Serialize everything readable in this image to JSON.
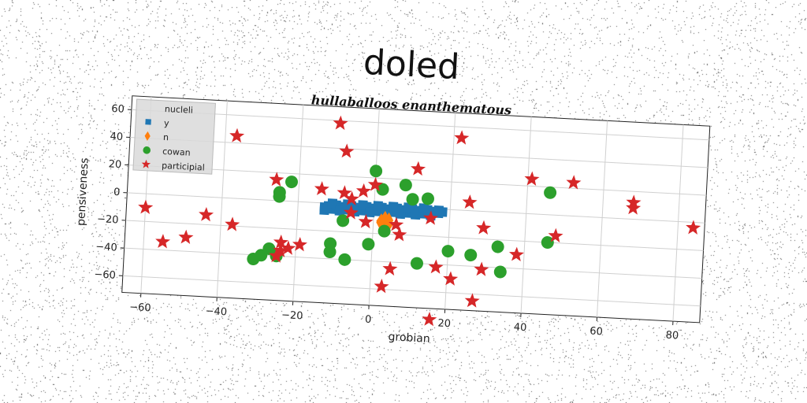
{
  "chart_data": {
    "type": "scatter",
    "title": "doled",
    "subtitle": "hullaballoos enanthematous",
    "xlabel": "grobian",
    "ylabel": "pensiveness",
    "xlim": [
      -65,
      87
    ],
    "ylim": [
      -72,
      70
    ],
    "x_ticks": [
      -60,
      -40,
      -20,
      0,
      20,
      40,
      60,
      80
    ],
    "y_ticks": [
      -60,
      -40,
      -20,
      0,
      20,
      40,
      60
    ],
    "grid": true,
    "legend_title": "nucleli",
    "legend_position": "top-left",
    "series": [
      {
        "name": "y",
        "marker": "square",
        "color": "#1f77b4",
        "points": [
          [
            -13,
            -3
          ],
          [
            -12,
            -2
          ],
          [
            -11,
            -4
          ],
          [
            -10,
            -1
          ],
          [
            -9,
            -3
          ],
          [
            -8,
            -2
          ],
          [
            -7,
            -4
          ],
          [
            -6,
            -1
          ],
          [
            -5,
            -3
          ],
          [
            -4,
            -2
          ],
          [
            -3,
            -4
          ],
          [
            -2,
            -1
          ],
          [
            -1,
            -3
          ],
          [
            0,
            -2
          ],
          [
            1,
            -4
          ],
          [
            2,
            -1
          ],
          [
            3,
            -3
          ],
          [
            4,
            -2
          ],
          [
            5,
            -4
          ],
          [
            6,
            -1
          ],
          [
            7,
            -3
          ],
          [
            8,
            -2
          ],
          [
            9,
            -4
          ],
          [
            10,
            -1
          ],
          [
            11,
            -3
          ],
          [
            12,
            -2
          ],
          [
            13,
            -4
          ],
          [
            14,
            -1
          ],
          [
            15,
            -3
          ],
          [
            16,
            -2
          ],
          [
            17,
            -3
          ],
          [
            18,
            -2
          ],
          [
            -13,
            -5
          ],
          [
            -11,
            0
          ],
          [
            -9,
            -5
          ],
          [
            -7,
            0
          ],
          [
            -5,
            -5
          ],
          [
            -3,
            0
          ],
          [
            -1,
            -5
          ],
          [
            1,
            0
          ],
          [
            3,
            -5
          ],
          [
            5,
            0
          ],
          [
            7,
            -5
          ],
          [
            9,
            0
          ],
          [
            11,
            -5
          ],
          [
            13,
            0
          ],
          [
            15,
            -5
          ],
          [
            17,
            -1
          ]
        ]
      },
      {
        "name": "n",
        "marker": "diamond",
        "color": "#ff7f0e",
        "points": [
          [
            2,
            -12
          ],
          [
            3,
            -14
          ],
          [
            4,
            -10
          ],
          [
            3,
            -16
          ],
          [
            2,
            -11
          ],
          [
            4,
            -13
          ],
          [
            3,
            -9
          ]
        ]
      },
      {
        "name": "cowan",
        "marker": "circle",
        "color": "#2ca02c",
        "points": [
          [
            -25,
            6
          ],
          [
            -25,
            3
          ],
          [
            -22,
            14
          ],
          [
            -31,
            -43
          ],
          [
            -29,
            -40
          ],
          [
            -25,
            -40
          ],
          [
            -27,
            -35
          ],
          [
            -11,
            -29
          ],
          [
            -11,
            -35
          ],
          [
            -7,
            -40
          ],
          [
            -8,
            -12
          ],
          [
            -1,
            -28
          ],
          [
            0,
            25
          ],
          [
            2,
            12
          ],
          [
            8,
            16
          ],
          [
            10,
            6
          ],
          [
            14,
            7
          ],
          [
            20,
            -30
          ],
          [
            26,
            -32
          ],
          [
            33,
            -25
          ],
          [
            34,
            -43
          ],
          [
            46,
            16
          ],
          [
            46,
            -20
          ],
          [
            12,
            -40
          ],
          [
            3,
            -18
          ]
        ]
      },
      {
        "name": "participial",
        "marker": "star",
        "color": "#d62728",
        "points": [
          [
            -60,
            -10
          ],
          [
            -55,
            -34
          ],
          [
            -49,
            -30
          ],
          [
            -44,
            -13
          ],
          [
            -37,
            -19
          ],
          [
            -37,
            45
          ],
          [
            -26,
            15
          ],
          [
            -24,
            -30
          ],
          [
            -24,
            -36
          ],
          [
            -25,
            -40
          ],
          [
            -22,
            -34
          ],
          [
            -19,
            -31
          ],
          [
            -14,
            10
          ],
          [
            -10,
            58
          ],
          [
            -8,
            38
          ],
          [
            -8,
            8
          ],
          [
            -6,
            4
          ],
          [
            -6,
            -6
          ],
          [
            -3,
            10
          ],
          [
            0,
            15
          ],
          [
            -2,
            -12
          ],
          [
            3,
            -58
          ],
          [
            5,
            -45
          ],
          [
            6,
            -13
          ],
          [
            7,
            -20
          ],
          [
            11,
            28
          ],
          [
            15,
            -7
          ],
          [
            16,
            -80
          ],
          [
            17,
            -42
          ],
          [
            21,
            -50
          ],
          [
            25,
            6
          ],
          [
            27,
            -65
          ],
          [
            29,
            -12
          ],
          [
            29,
            -42
          ],
          [
            38,
            -30
          ],
          [
            41,
            25
          ],
          [
            48,
            -15
          ],
          [
            52,
            24
          ],
          [
            68,
            12
          ],
          [
            68,
            8
          ],
          [
            84,
            -4
          ],
          [
            22,
            52
          ]
        ]
      }
    ]
  }
}
